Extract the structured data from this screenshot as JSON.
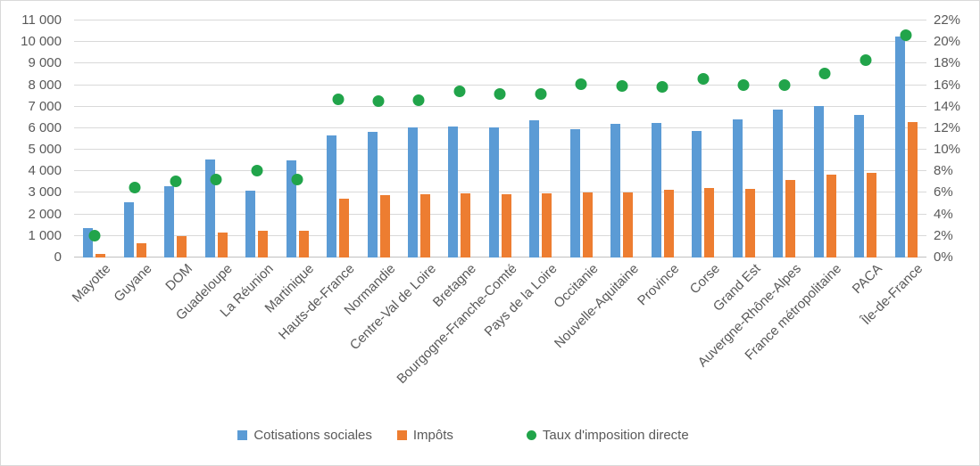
{
  "chart_data": {
    "type": "bar",
    "subtype": "combo column + scatter points, dual axis",
    "title": "",
    "categories": [
      "Mayotte",
      "Guyane",
      "DOM",
      "Guadeloupe",
      "La Réunion",
      "Martinique",
      "Hauts-de-France",
      "Normandie",
      "Centre-Val de Loire",
      "Bretagne",
      "Bourgogne-Franche-Comté",
      "Pays de la Loire",
      "Occitanie",
      "Nouvelle-Aquitaine",
      "Province",
      "Corse",
      "Grand Est",
      "Auvergne-Rhône-Alpes",
      "France métropolitaine",
      "PACA",
      "Île-de-France"
    ],
    "series": [
      {
        "name": "Cotisations sociales",
        "type": "column",
        "axis": "left",
        "color": "#5B9BD5",
        "values": [
          1350,
          2580,
          3300,
          4530,
          3100,
          4510,
          5650,
          5850,
          6020,
          6060,
          6050,
          6350,
          5950,
          6220,
          6250,
          5880,
          6430,
          6870,
          7020,
          6600,
          10250
        ]
      },
      {
        "name": "Impôts",
        "type": "column",
        "axis": "left",
        "color": "#ED7D31",
        "values": [
          150,
          670,
          1000,
          1170,
          1230,
          1250,
          2750,
          2900,
          2930,
          2970,
          2930,
          2970,
          3030,
          3010,
          3140,
          3230,
          3200,
          3600,
          3860,
          3920,
          6280
        ]
      },
      {
        "name": "Taux d'imposition directe",
        "type": "point",
        "axis": "right",
        "color": "#21A44A",
        "values_percent": [
          2.0,
          6.5,
          7.1,
          7.2,
          8.1,
          7.2,
          14.7,
          14.5,
          14.6,
          15.4,
          15.2,
          15.2,
          16.1,
          15.9,
          15.8,
          16.6,
          16.0,
          16.0,
          17.1,
          18.3,
          20.6
        ]
      }
    ],
    "left_axis": {
      "min": 0,
      "max": 11000,
      "step": 1000,
      "tick_labels": [
        "0",
        "1 000",
        "2 000",
        "3 000",
        "4 000",
        "5 000",
        "6 000",
        "7 000",
        "8 000",
        "9 000",
        "10 000",
        "11 000"
      ]
    },
    "right_axis": {
      "min": 0,
      "max": 22,
      "step": 2,
      "unit": "%",
      "tick_labels": [
        "0%",
        "2%",
        "4%",
        "6%",
        "8%",
        "10%",
        "12%",
        "14%",
        "16%",
        "18%",
        "20%",
        "22%"
      ]
    },
    "grid": true,
    "legend_position": "bottom"
  }
}
